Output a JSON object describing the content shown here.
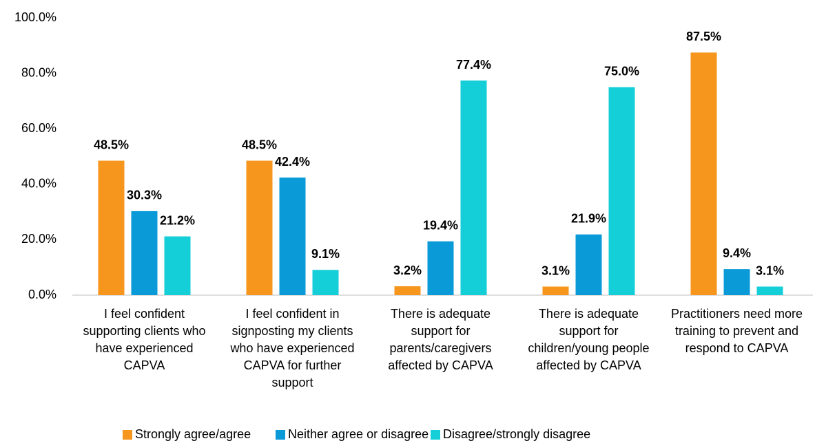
{
  "chart_data": {
    "type": "bar",
    "categories": [
      "I feel confident supporting clients who have experienced CAPVA",
      "I feel confident in signposting my clients who have experienced CAPVA for further support",
      "There is adequate support for parents/caregivers affected by CAPVA",
      "There is adequate support for children/young people affected by CAPVA",
      "Practitioners need more training to prevent and respond to CAPVA"
    ],
    "series": [
      {
        "name": "Strongly agree/agree",
        "color": "#f7961d",
        "values": [
          48.5,
          48.5,
          3.2,
          3.1,
          87.5
        ],
        "value_labels": [
          "48.5%",
          "48.5%",
          "3.2%",
          "3.1%",
          "87.5%"
        ]
      },
      {
        "name": "Neither agree or disagree",
        "color": "#0a9ad8",
        "values": [
          30.3,
          42.4,
          19.4,
          21.9,
          9.4
        ],
        "value_labels": [
          "30.3%",
          "42.4%",
          "19.4%",
          "21.9%",
          "9.4%"
        ]
      },
      {
        "name": "Disagree/strongly disagree",
        "color": "#14ced8",
        "values": [
          21.2,
          9.1,
          77.4,
          75.0,
          3.1
        ],
        "value_labels": [
          "21.2%",
          "9.1%",
          "77.4%",
          "75.0%",
          "3.1%"
        ]
      }
    ],
    "ylim": [
      0,
      100
    ],
    "yticks": [
      {
        "value": 0,
        "label": "0.0%"
      },
      {
        "value": 20,
        "label": "20.0%"
      },
      {
        "value": 40,
        "label": "40.0%"
      },
      {
        "value": 60,
        "label": "60.0%"
      },
      {
        "value": 80,
        "label": "80.0%"
      },
      {
        "value": 100,
        "label": "100.0%"
      }
    ],
    "grid": false,
    "legend": "bottom"
  }
}
